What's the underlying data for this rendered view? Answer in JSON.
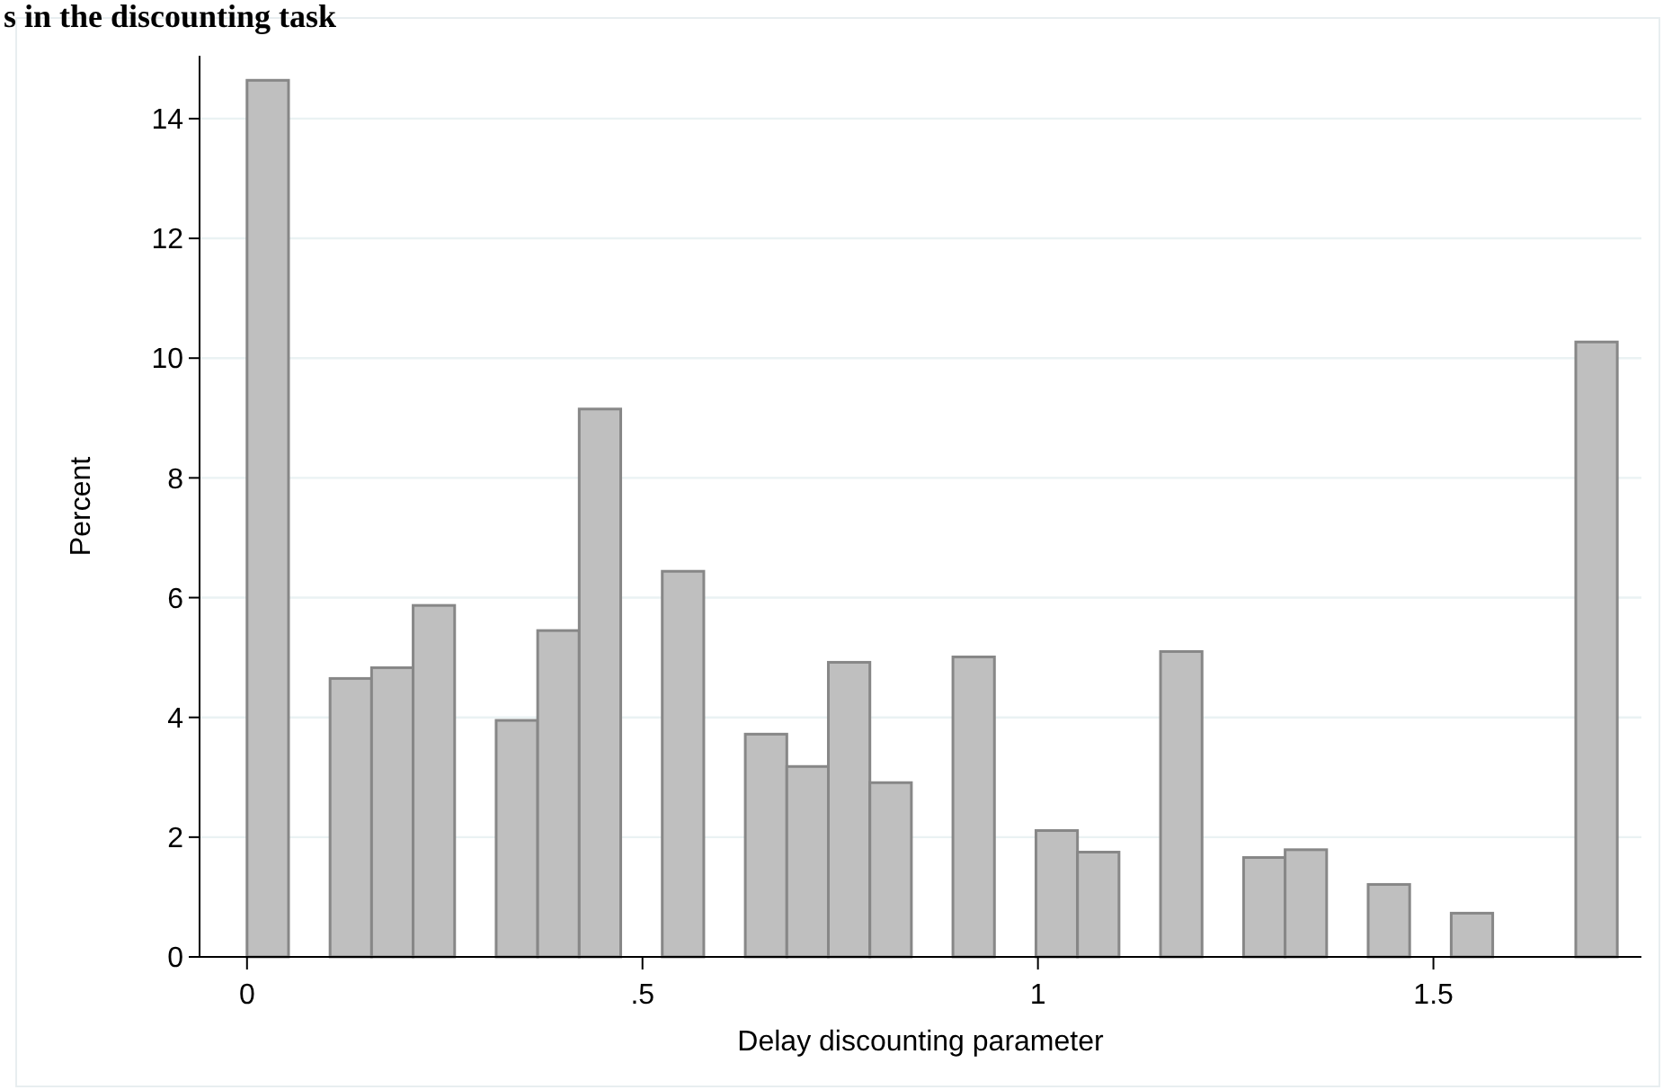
{
  "chart_data": {
    "type": "histogram",
    "title": "s in the discounting task",
    "xlabel": "Delay discounting parameter",
    "ylabel": "Percent",
    "bins": [
      0,
      0.0525,
      0.105,
      0.1575,
      0.21,
      0.2625,
      0.315,
      0.3675,
      0.42,
      0.4725,
      0.525,
      0.5775,
      0.63,
      0.6825,
      0.735,
      0.7875,
      0.84,
      0.8925,
      0.945,
      0.9975,
      1.05,
      1.1025,
      1.155,
      1.2075,
      1.26,
      1.3125,
      1.365,
      1.4175,
      1.47,
      1.5225,
      1.575,
      1.6275,
      1.68,
      1.7325
    ],
    "values": [
      14.64,
      0,
      4.65,
      4.83,
      5.87,
      0,
      3.95,
      5.45,
      9.15,
      0,
      6.44,
      0,
      3.72,
      3.18,
      4.92,
      2.91,
      0,
      5.01,
      0,
      2.11,
      1.75,
      0,
      5.1,
      0,
      1.66,
      1.79,
      0,
      1.21,
      0,
      0.73,
      0,
      0,
      10.27
    ],
    "color": "#bfbfbf",
    "xlim": [
      -0.06,
      1.763
    ],
    "xticks": [
      0,
      {
        "value": 0.5,
        "label": ".5"
      },
      1,
      1.5
    ],
    "ylim": [
      0,
      15.05
    ],
    "yticks": [
      0,
      2,
      4,
      6,
      8,
      10,
      12,
      14
    ],
    "grid": "y"
  }
}
